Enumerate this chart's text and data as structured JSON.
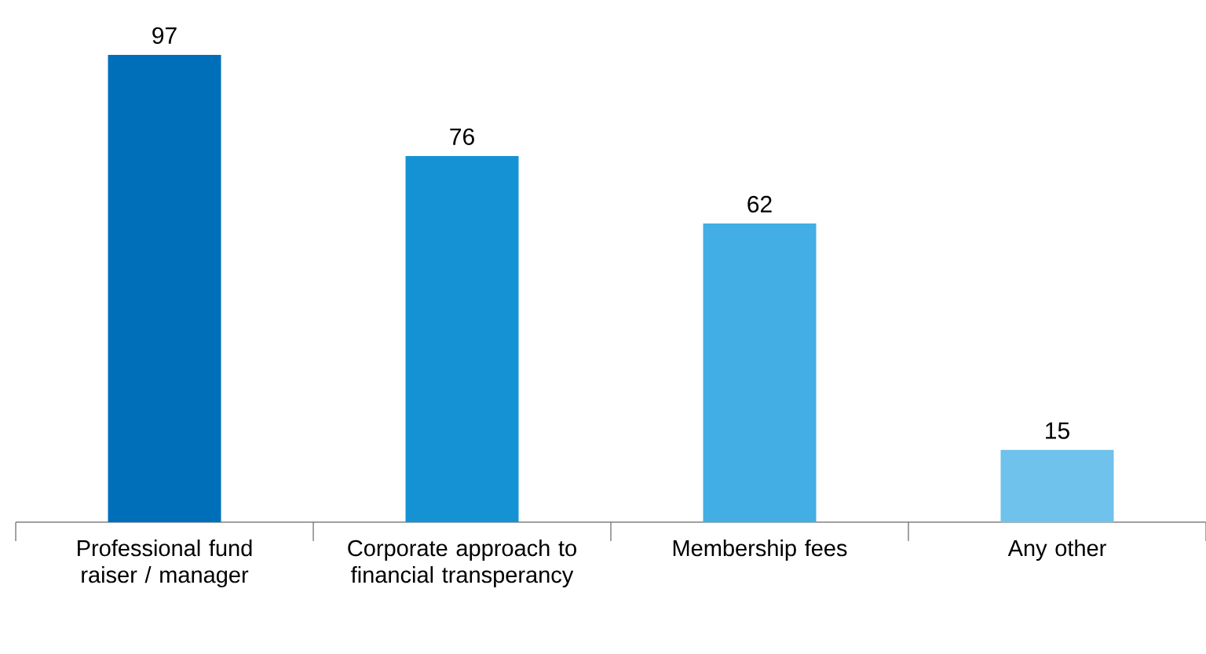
{
  "chart_data": {
    "type": "bar",
    "categories": [
      "Professional fund raiser / manager",
      "Corporate approach to financial transperancy",
      "Membership fees",
      "Any other"
    ],
    "values": [
      97,
      76,
      62,
      15
    ],
    "colors": [
      "#006fb9",
      "#1592d3",
      "#42aee3",
      "#6ec2ec"
    ],
    "data_labels": true
  }
}
